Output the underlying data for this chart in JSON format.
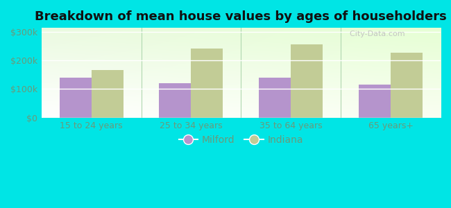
{
  "title": "Breakdown of mean house values by ages of householders",
  "categories": [
    "15 to 24 years",
    "25 to 34 years",
    "35 to 64 years",
    "65 years+"
  ],
  "milford_values": [
    140000,
    120000,
    140000,
    115000
  ],
  "indiana_values": [
    168000,
    243000,
    258000,
    228000
  ],
  "milford_color": "#b594cc",
  "indiana_color": "#c2cc96",
  "background_color": "#00e5e5",
  "yticks": [
    0,
    100000,
    200000,
    300000
  ],
  "ytick_labels": [
    "$0",
    "$100k",
    "$200k",
    "$300k"
  ],
  "ylim": [
    0,
    315000
  ],
  "bar_width": 0.32,
  "legend_labels": [
    "Milford",
    "Indiana"
  ],
  "watermark": "  City-Data.com",
  "title_fontsize": 13,
  "tick_color": "#6a9a7a",
  "tick_fontsize": 9
}
